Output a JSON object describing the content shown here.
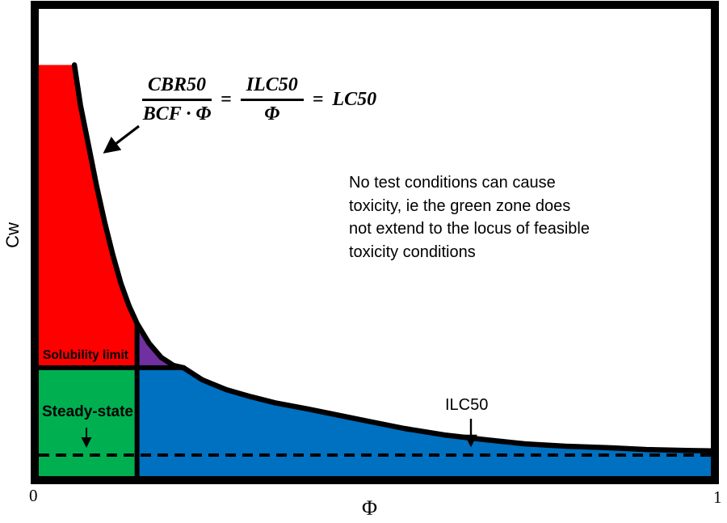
{
  "figure": {
    "axes": {
      "y_label": "Cw",
      "x_label": "Φ",
      "x_tick_min": "0",
      "x_tick_max": "1"
    },
    "formula": {
      "frac1_num": "CBR50",
      "frac1_den": "BCF · Φ",
      "equals": "=",
      "frac2_num": "ILC50",
      "frac2_den": "Φ",
      "result": "LC50"
    },
    "annotation": {
      "lines": [
        "No test conditions can cause",
        "toxicity, ie the green zone does",
        "not extend to the locus of feasible",
        "toxicity conditions"
      ]
    },
    "labels": {
      "solubility_limit": "Solubility limit",
      "steady_state": "Steady-state",
      "ilc50": "ILC50"
    }
  },
  "chart_data": {
    "type": "area",
    "title": "",
    "xlabel": "Φ",
    "ylabel": "Cw",
    "xlim": [
      0,
      1
    ],
    "x_ticks": [
      0,
      1
    ],
    "grid": false,
    "legend": "none",
    "curve": {
      "name": "LC50 locus: CBR50/(BCF·Φ) = ILC50/Φ = LC50",
      "points_phi_cw": [
        [
          0.053,
          0.88
        ],
        [
          0.062,
          0.794
        ],
        [
          0.074,
          0.708
        ],
        [
          0.086,
          0.621
        ],
        [
          0.098,
          0.543
        ],
        [
          0.11,
          0.474
        ],
        [
          0.122,
          0.413
        ],
        [
          0.134,
          0.365
        ],
        [
          0.146,
          0.327
        ],
        [
          0.164,
          0.284
        ],
        [
          0.182,
          0.254
        ],
        [
          0.2,
          0.237
        ],
        [
          0.215,
          0.232
        ],
        [
          0.243,
          0.206
        ],
        [
          0.279,
          0.185
        ],
        [
          0.315,
          0.17
        ],
        [
          0.351,
          0.157
        ],
        [
          0.399,
          0.144
        ],
        [
          0.447,
          0.13
        ],
        [
          0.495,
          0.116
        ],
        [
          0.543,
          0.102
        ],
        [
          0.603,
          0.088
        ],
        [
          0.663,
          0.078
        ],
        [
          0.723,
          0.069
        ],
        [
          0.783,
          0.064
        ],
        [
          0.843,
          0.061
        ],
        [
          0.903,
          0.057
        ],
        [
          0.963,
          0.055
        ],
        [
          1.0,
          0.054
        ]
      ]
    },
    "levels": {
      "solubility_limit_cw": 0.232,
      "ilc50_dashed_line_cw": 0.045,
      "steady_state_max_phi": 0.146,
      "curve_crosses_solubility_at_phi": 0.215
    },
    "regions": [
      {
        "name": "above-solubility-left-of-curve",
        "color": "#fe0000",
        "label": "Solubility limit"
      },
      {
        "name": "toxic-above-solubility-triangle",
        "color": "#7030a0",
        "label": ""
      },
      {
        "name": "steady-state-zone",
        "color": "#00b050",
        "label": "Steady-state"
      },
      {
        "name": "feasible-below-curve",
        "color": "#0070c0",
        "label": ""
      }
    ],
    "line_colors": {
      "curve": "#000000",
      "dashed_ilc50": "#000000",
      "frame": "#000000"
    }
  }
}
